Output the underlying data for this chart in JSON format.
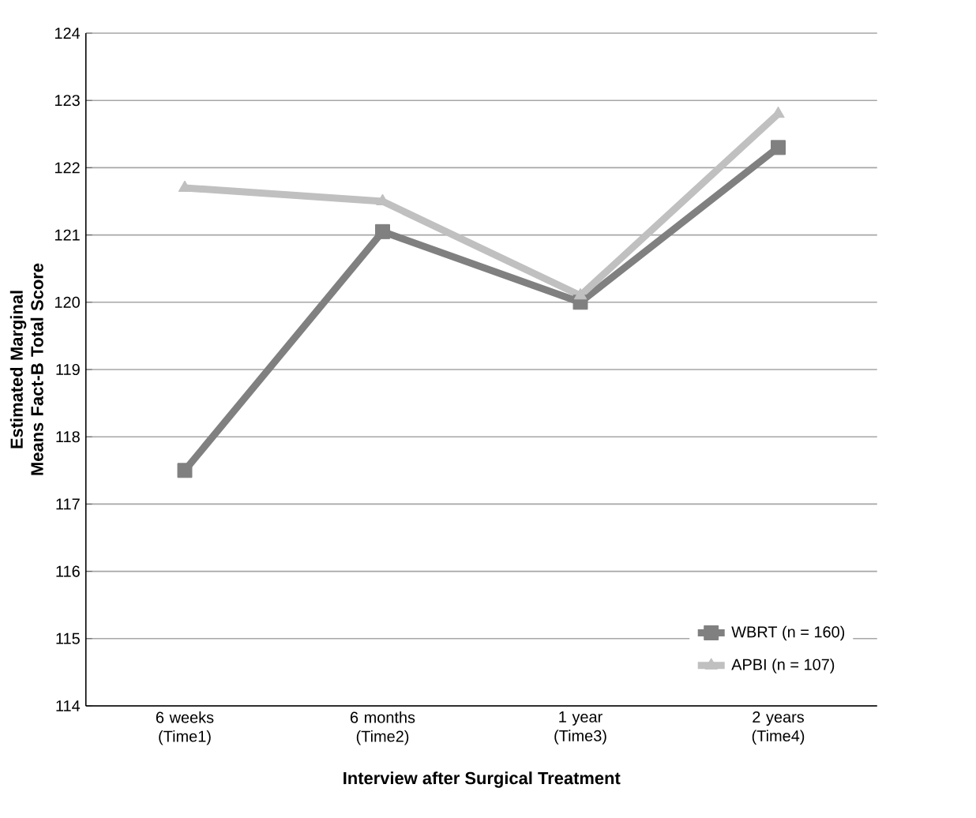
{
  "chart_data": {
    "type": "line",
    "xlabel": "Interview after Surgical Treatment",
    "ylabel": "Estimated Marginal Means Fact-B Total Score",
    "categories": [
      "6 weeks (Time1)",
      "6 months (Time2)",
      "1 year (Time3)",
      "2 years (Time4)"
    ],
    "series": [
      {
        "name": "WBRT (n = 160)",
        "color": "#808080",
        "marker": "square",
        "values": [
          117.5,
          121.05,
          120.0,
          122.3
        ]
      },
      {
        "name": "APBI (n = 107)",
        "color": "#c0c0c0",
        "marker": "triangle",
        "values": [
          121.7,
          121.5,
          120.1,
          122.8
        ]
      }
    ],
    "ylim": [
      114,
      124
    ],
    "yticks": [
      114,
      115,
      116,
      117,
      118,
      119,
      120,
      121,
      122,
      123,
      124
    ],
    "grid": "y",
    "legend": "bottom right",
    "line_style": "solid"
  }
}
